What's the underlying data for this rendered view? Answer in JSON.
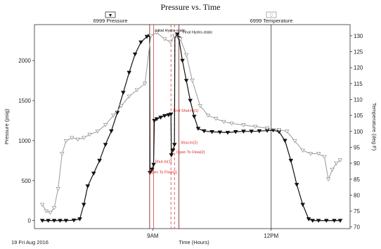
{
  "chart_data": {
    "type": "line",
    "title": "Pressure vs. Time",
    "xlabel": "Time (Hours)",
    "ylabel": "Pressure (psig)",
    "y2label": "Temperature (deg F)",
    "date_label": "19 Fri Aug 2016",
    "x_ticks": [
      {
        "label": "9AM",
        "hours": 9.0
      },
      {
        "label": "12PM",
        "hours": 12.0
      }
    ],
    "xlim": [
      6.0,
      14.0
    ],
    "ylim": [
      -100,
      2450
    ],
    "y_ticks": [
      0,
      500,
      1000,
      1500,
      2000
    ],
    "y2lim": [
      69.5,
      133.5
    ],
    "y2_ticks": [
      70,
      75,
      80,
      85,
      90,
      95,
      100,
      105,
      110,
      115,
      120,
      125,
      130
    ],
    "grid": false,
    "legend": [
      {
        "label": "6999 Pressure",
        "marker": "▼",
        "color": "#111111"
      },
      {
        "label": "6999 Temperature",
        "marker": "▽",
        "color": "#9a9a9a"
      }
    ],
    "vertical_lines": [
      {
        "hours": 8.92,
        "color": "#7a1010",
        "style": "solid"
      },
      {
        "hours": 9.02,
        "color": "#d44040",
        "style": "solid"
      },
      {
        "hours": 9.46,
        "color": "#d44040",
        "style": "dashed"
      },
      {
        "hours": 9.55,
        "color": "#d44040",
        "style": "dashed"
      },
      {
        "hours": 9.66,
        "color": "#7a1010",
        "style": "solid"
      },
      {
        "hours": 12.0,
        "color": "#333333",
        "style": "solid"
      }
    ],
    "annotations": [
      {
        "text": "Initial Hydro-static",
        "hours": 9.05,
        "value": 2360,
        "axis": "left",
        "color": "black"
      },
      {
        "text": "Final Hydro-static",
        "hours": 9.75,
        "value": 2340,
        "axis": "left",
        "color": "black"
      },
      {
        "text": "End Shut-In(1)",
        "hours": 9.52,
        "value": 1360,
        "axis": "left",
        "color": "red"
      },
      {
        "text": "Shut-In(2)",
        "hours": 9.7,
        "value": 960,
        "axis": "left",
        "color": "red"
      },
      {
        "text": "Open To Flow(2)",
        "hours": 9.6,
        "value": 840,
        "axis": "left",
        "color": "red"
      },
      {
        "text": "Shut-In(1)",
        "hours": 9.05,
        "value": 720,
        "axis": "left",
        "color": "red"
      },
      {
        "text": "Open To Flow(1)",
        "hours": 8.9,
        "value": 590,
        "axis": "left",
        "color": "red"
      }
    ],
    "series": [
      {
        "name": "6999 Pressure",
        "axis": "left",
        "color": "#111111",
        "marker": "▼",
        "points": [
          [
            6.2,
            0
          ],
          [
            6.35,
            0
          ],
          [
            6.5,
            0
          ],
          [
            6.65,
            0
          ],
          [
            6.8,
            0
          ],
          [
            7.0,
            5
          ],
          [
            7.15,
            20
          ],
          [
            7.25,
            200
          ],
          [
            7.35,
            430
          ],
          [
            7.5,
            590
          ],
          [
            7.65,
            750
          ],
          [
            7.8,
            950
          ],
          [
            7.95,
            1120
          ],
          [
            8.1,
            1350
          ],
          [
            8.25,
            1600
          ],
          [
            8.4,
            1850
          ],
          [
            8.55,
            2080
          ],
          [
            8.7,
            2230
          ],
          [
            8.85,
            2300
          ],
          [
            8.92,
            2310
          ],
          [
            8.93,
            600
          ],
          [
            8.98,
            640
          ],
          [
            9.02,
            700
          ],
          [
            9.04,
            1250
          ],
          [
            9.1,
            1270
          ],
          [
            9.2,
            1290
          ],
          [
            9.3,
            1310
          ],
          [
            9.4,
            1320
          ],
          [
            9.46,
            1330
          ],
          [
            9.47,
            820
          ],
          [
            9.51,
            880
          ],
          [
            9.55,
            950
          ],
          [
            9.56,
            2300
          ],
          [
            9.62,
            2330
          ],
          [
            9.66,
            2280
          ],
          [
            9.75,
            2000
          ],
          [
            9.85,
            1750
          ],
          [
            9.95,
            1500
          ],
          [
            10.05,
            1300
          ],
          [
            10.15,
            1150
          ],
          [
            10.3,
            1120
          ],
          [
            10.5,
            1110
          ],
          [
            10.7,
            1105
          ],
          [
            10.9,
            1100
          ],
          [
            11.1,
            1110
          ],
          [
            11.3,
            1115
          ],
          [
            11.5,
            1115
          ],
          [
            11.7,
            1120
          ],
          [
            11.9,
            1125
          ],
          [
            12.05,
            1130
          ],
          [
            12.2,
            1110
          ],
          [
            12.35,
            1000
          ],
          [
            12.5,
            750
          ],
          [
            12.65,
            450
          ],
          [
            12.8,
            200
          ],
          [
            12.95,
            20
          ],
          [
            13.05,
            0
          ],
          [
            13.2,
            0
          ],
          [
            13.4,
            0
          ],
          [
            13.6,
            0
          ],
          [
            13.75,
            0
          ]
        ]
      },
      {
        "name": "6999 Temperature",
        "axis": "right",
        "color": "#9a9a9a",
        "marker": "▽",
        "points": [
          [
            6.2,
            77
          ],
          [
            6.3,
            75
          ],
          [
            6.4,
            74.5
          ],
          [
            6.5,
            76
          ],
          [
            6.6,
            82
          ],
          [
            6.7,
            93
          ],
          [
            6.8,
            97
          ],
          [
            6.95,
            98
          ],
          [
            7.1,
            97.5
          ],
          [
            7.25,
            98
          ],
          [
            7.4,
            99
          ],
          [
            7.6,
            100
          ],
          [
            7.8,
            102
          ],
          [
            8.0,
            105
          ],
          [
            8.2,
            108
          ],
          [
            8.4,
            111
          ],
          [
            8.6,
            113
          ],
          [
            8.8,
            115
          ],
          [
            8.95,
            130
          ],
          [
            9.1,
            131
          ],
          [
            9.3,
            129
          ],
          [
            9.45,
            128
          ],
          [
            9.55,
            130
          ],
          [
            9.7,
            129
          ],
          [
            9.85,
            124
          ],
          [
            10.0,
            116
          ],
          [
            10.2,
            108
          ],
          [
            10.4,
            105
          ],
          [
            10.6,
            104
          ],
          [
            10.8,
            103
          ],
          [
            11.0,
            102.5
          ],
          [
            11.3,
            102
          ],
          [
            11.6,
            101.5
          ],
          [
            11.9,
            101
          ],
          [
            12.2,
            100.5
          ],
          [
            12.4,
            100
          ],
          [
            12.6,
            97
          ],
          [
            12.8,
            94
          ],
          [
            13.0,
            93
          ],
          [
            13.2,
            93
          ],
          [
            13.35,
            92
          ],
          [
            13.45,
            85
          ],
          [
            13.55,
            88
          ],
          [
            13.65,
            90
          ],
          [
            13.75,
            91
          ]
        ]
      }
    ]
  }
}
